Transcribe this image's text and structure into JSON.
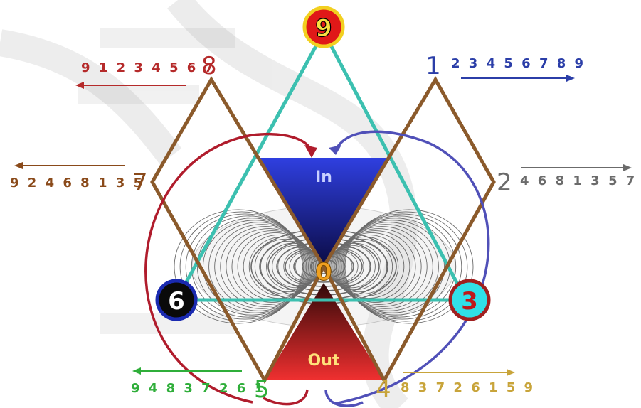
{
  "nodes": {
    "top": "9",
    "left": "6",
    "right": "3",
    "center": "0"
  },
  "labels": {
    "in": "In",
    "out": "Out"
  },
  "sequences": [
    {
      "id": "seq-8",
      "number": "8",
      "digits": "9 1 2 3 4 5 6 7",
      "color": "#b52a2a",
      "direction": "left"
    },
    {
      "id": "seq-1",
      "number": "1",
      "digits": "2 3 4 5 6 7 8 9",
      "color": "#2b3ea8",
      "direction": "right"
    },
    {
      "id": "seq-7",
      "number": "7",
      "digits": "9 2 4 6 8 1 3 5",
      "color": "#8a4a1a",
      "direction": "left"
    },
    {
      "id": "seq-2",
      "number": "2",
      "digits": "4 6 8 1 3 5 7 9",
      "color": "#6b6b6b",
      "direction": "right"
    },
    {
      "id": "seq-5",
      "number": "5",
      "digits": "9 4 8 3 7 2 6 1",
      "color": "#2fae3a",
      "direction": "left"
    },
    {
      "id": "seq-4",
      "number": "4",
      "digits": "8 3 7 2 6 1 5 9",
      "color": "#c8a43a",
      "direction": "right"
    }
  ],
  "colors": {
    "triangle": "#3cc0b0",
    "diamonds": "#8b5a2b",
    "in_funnel": "#2f3fe0",
    "out_funnel": "#e02828",
    "arc_red": "#b01c2c",
    "arc_blue": "#5050b8",
    "node_9_fill": "#e01818",
    "node_9_ring": "#f2d020",
    "node_6_fill": "#0a0a0a",
    "node_6_ring": "#1a2ab0",
    "node_3_fill": "#30e0e8",
    "node_3_ring": "#a02020",
    "center_text": "#f0a020"
  }
}
